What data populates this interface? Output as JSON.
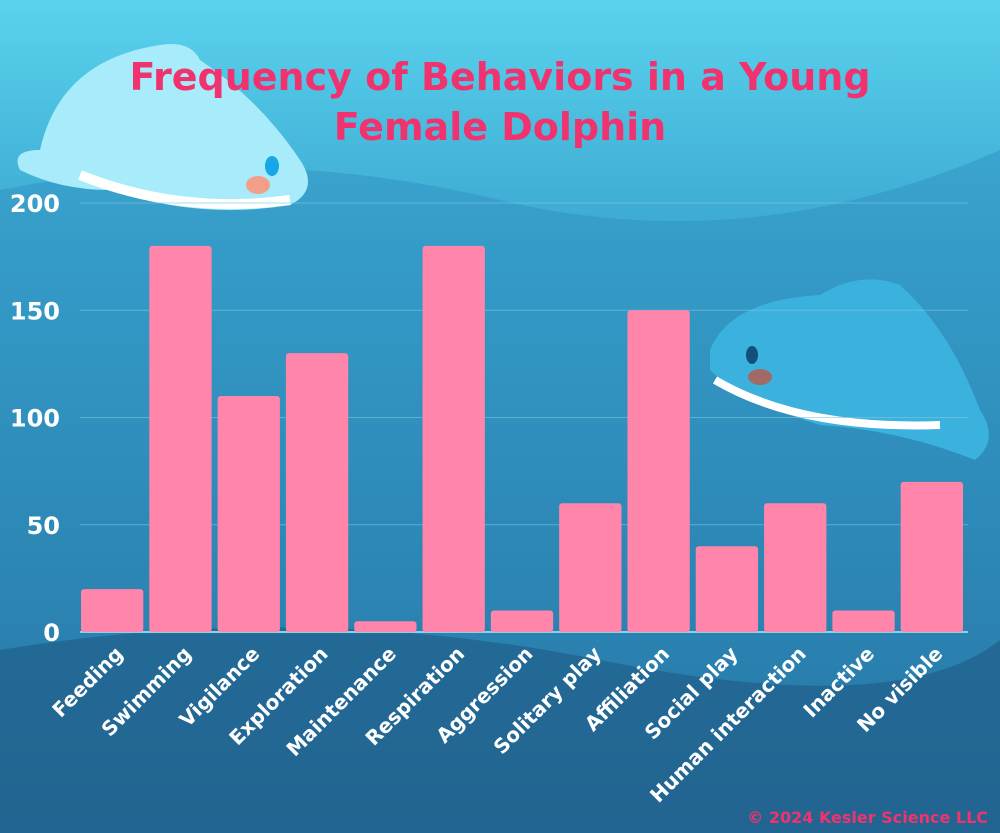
{
  "chart_data": {
    "type": "bar",
    "title": "Frequency of Behaviors in a Young Female Dolphin",
    "title_lines": [
      "Frequency of Behaviors in a Young",
      "Female Dolphin"
    ],
    "xlabel": "",
    "ylabel": "",
    "ylim": [
      0,
      200
    ],
    "yticks": [
      0,
      50,
      100,
      150,
      200
    ],
    "grid": true,
    "categories": [
      "Feeding",
      "Swimming",
      "Vigilance",
      "Exploration",
      "Maintenance",
      "Respiration",
      "Aggression",
      "Solitary play",
      "Affiliation",
      "Social play",
      "Human interaction",
      "Inactive",
      "No visible"
    ],
    "values": [
      20,
      180,
      110,
      130,
      5,
      180,
      10,
      60,
      150,
      40,
      60,
      10,
      70
    ],
    "colors": {
      "bar": "#ff85ab",
      "title": "#f0336f",
      "text": "#ffffff"
    }
  },
  "footer": {
    "copyright": "© 2024 Kesler Science LLC"
  }
}
